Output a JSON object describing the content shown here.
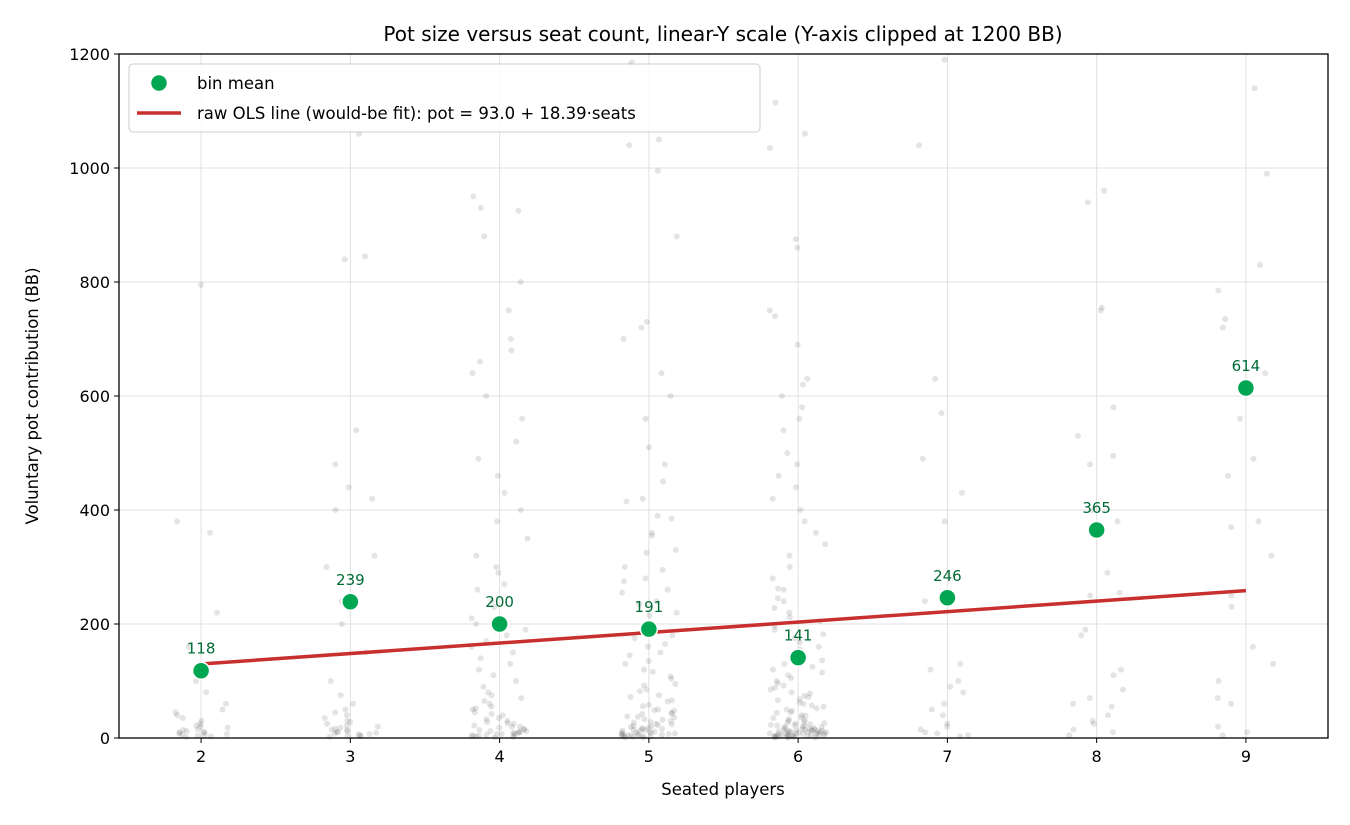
{
  "chart_data": {
    "type": "scatter",
    "title": "Pot size versus seat count, linear-Y scale (Y-axis clipped at 1200 BB)",
    "xlabel": "Seated players",
    "ylabel": "Voluntary pot contribution (BB)",
    "xlim": [
      1.45,
      9.55
    ],
    "ylim": [
      0,
      1200
    ],
    "x_ticks": [
      2,
      3,
      4,
      5,
      6,
      7,
      8,
      9
    ],
    "y_ticks": [
      0,
      200,
      400,
      600,
      800,
      1000,
      1200
    ],
    "grid": true,
    "legend_position": "top-left",
    "colors": {
      "bin_mean": "#00a651",
      "bin_mean_label": "#006b35",
      "ols_line": "#c8302f",
      "raw_points": "#555555",
      "grid": "#e0e0e0"
    },
    "series": [
      {
        "name": "bin mean",
        "kind": "scatter",
        "x": [
          2,
          3,
          4,
          5,
          6,
          7,
          8,
          9
        ],
        "y": [
          118,
          239,
          200,
          191,
          141,
          246,
          365,
          614
        ],
        "labels": [
          "118",
          "239",
          "200",
          "191",
          "141",
          "246",
          "365",
          "614"
        ]
      },
      {
        "name": "raw OLS line (would-be fit): pot = 93.0 + 18.39·seats",
        "kind": "line",
        "x": [
          2,
          9
        ],
        "y": [
          129.8,
          258.5
        ]
      }
    ],
    "raw_points": [
      {
        "seats": 2,
        "y": [
          20,
          5,
          8,
          12,
          15,
          30,
          40,
          50,
          80,
          100,
          160,
          220,
          360,
          380,
          795,
          2,
          3,
          6,
          9,
          25,
          35,
          45,
          60,
          18,
          10,
          4,
          7,
          14,
          22,
          11
        ]
      },
      {
        "seats": 3,
        "y": [
          5,
          10,
          15,
          20,
          30,
          45,
          60,
          75,
          100,
          150,
          200,
          240,
          300,
          320,
          400,
          420,
          440,
          480,
          540,
          840,
          845,
          1060,
          2,
          8,
          12,
          25,
          35,
          50,
          3,
          6,
          9,
          18,
          22,
          28,
          40,
          7,
          4,
          14,
          11,
          16
        ]
      },
      {
        "seats": 4,
        "y": [
          2,
          4,
          6,
          8,
          10,
          12,
          15,
          20,
          25,
          30,
          40,
          50,
          60,
          75,
          90,
          110,
          130,
          150,
          170,
          190,
          210,
          240,
          270,
          300,
          320,
          350,
          380,
          400,
          430,
          460,
          490,
          520,
          560,
          600,
          640,
          660,
          680,
          700,
          750,
          800,
          880,
          925,
          930,
          950,
          3,
          5,
          7,
          9,
          11,
          14,
          18,
          22,
          28,
          35,
          45,
          55,
          65,
          80,
          100,
          120,
          140,
          160,
          180,
          200,
          230,
          260,
          290,
          1,
          3,
          5,
          7,
          9,
          12,
          16,
          20,
          26,
          33,
          42,
          52,
          70
        ]
      },
      {
        "seats": 5,
        "y": [
          1,
          3,
          5,
          7,
          9,
          11,
          14,
          17,
          20,
          24,
          28,
          33,
          38,
          44,
          50,
          58,
          66,
          75,
          85,
          95,
          108,
          120,
          135,
          150,
          165,
          180,
          200,
          220,
          240,
          260,
          280,
          300,
          330,
          360,
          390,
          420,
          450,
          480,
          510,
          560,
          600,
          640,
          700,
          720,
          730,
          880,
          995,
          1040,
          1050,
          1180,
          1185,
          2,
          4,
          6,
          8,
          10,
          13,
          16,
          19,
          23,
          27,
          32,
          37,
          43,
          49,
          56,
          64,
          72,
          82,
          92,
          104,
          116,
          130,
          145,
          160,
          175,
          195,
          215,
          235,
          255,
          275,
          295,
          325,
          355,
          385,
          415,
          1,
          2,
          3,
          4,
          5,
          6,
          7,
          8,
          9,
          10,
          12,
          14,
          16,
          18,
          21,
          25,
          30,
          36,
          42,
          48
        ]
      },
      {
        "seats": 6,
        "y": [
          1,
          2,
          3,
          4,
          5,
          6,
          7,
          8,
          9,
          10,
          11,
          12,
          13,
          14,
          15,
          16,
          18,
          20,
          22,
          24,
          26,
          28,
          30,
          33,
          36,
          40,
          44,
          48,
          52,
          57,
          62,
          68,
          74,
          80,
          88,
          96,
          105,
          115,
          125,
          136,
          148,
          160,
          175,
          190,
          205,
          220,
          240,
          260,
          280,
          300,
          320,
          340,
          360,
          380,
          400,
          420,
          440,
          460,
          480,
          500,
          540,
          560,
          580,
          600,
          620,
          630,
          690,
          740,
          750,
          860,
          875,
          1035,
          1060,
          1115,
          1,
          2,
          3,
          4,
          5,
          6,
          7,
          8,
          9,
          10,
          12,
          14,
          16,
          19,
          23,
          27,
          31,
          35,
          39,
          45,
          50,
          55,
          60,
          66,
          72,
          78,
          85,
          92,
          100,
          110,
          120,
          130,
          142,
          155,
          168,
          182,
          197,
          212,
          228,
          245,
          262,
          1,
          2,
          3,
          4,
          5,
          6,
          7,
          8,
          9,
          10,
          11,
          12,
          13,
          14,
          15,
          17,
          19,
          21,
          23,
          25
        ]
      },
      {
        "seats": 7,
        "y": [
          5,
          10,
          20,
          40,
          50,
          80,
          100,
          120,
          130,
          240,
          380,
          430,
          490,
          570,
          630,
          1040,
          1190,
          3,
          8,
          15,
          25,
          60,
          90
        ]
      },
      {
        "seats": 8,
        "y": [
          5,
          10,
          30,
          40,
          55,
          60,
          85,
          110,
          120,
          180,
          190,
          250,
          255,
          290,
          380,
          400,
          480,
          495,
          530,
          580,
          750,
          755,
          940,
          960,
          15,
          25,
          70
        ]
      },
      {
        "seats": 9,
        "y": [
          5,
          10,
          60,
          70,
          130,
          160,
          230,
          250,
          320,
          370,
          380,
          490,
          560,
          640,
          720,
          735,
          785,
          830,
          990,
          1140,
          20,
          100,
          460
        ]
      }
    ]
  }
}
